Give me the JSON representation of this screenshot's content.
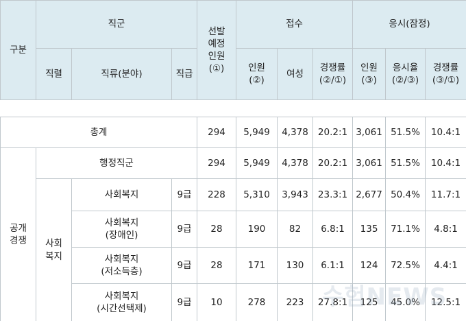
{
  "header": {
    "group": "구분",
    "jikgun": "직군",
    "jikryeol": "직렬",
    "jikryu": "직류(분야)",
    "jikgeup": "직급",
    "planned": "선발\n예정\n인원\n(①)",
    "applied": "접수",
    "exam": "응시(잠정)",
    "app_count": "인원\n(②)",
    "women": "여성",
    "app_ratio": "경쟁률\n(②/①)",
    "exam_count": "인원\n(③)",
    "exam_rate": "응시율\n(②/③)",
    "exam_ratio": "경쟁률\n(③/①)"
  },
  "total": {
    "label": "총계",
    "values": [
      "294",
      "5,949",
      "4,378",
      "20.2:1",
      "3,061",
      "51.5%",
      "10.4:1"
    ]
  },
  "open": {
    "label": "공개\n경쟁",
    "admin": {
      "label": "행정직군",
      "values": [
        "294",
        "5,949",
        "4,378",
        "20.2:1",
        "3,061",
        "51.5%",
        "10.4:1"
      ]
    },
    "welfare": {
      "label": "사회\n복지",
      "rows": [
        {
          "field": "사회복지",
          "grade": "9급",
          "values": [
            "228",
            "5,310",
            "3,943",
            "23.3:1",
            "2,677",
            "50.4%",
            "11.7:1"
          ]
        },
        {
          "field": "사회복지\n(장애인)",
          "grade": "9급",
          "values": [
            "28",
            "190",
            "82",
            "6.8:1",
            "135",
            "71.1%",
            "4.8:1"
          ]
        },
        {
          "field": "사회복지\n(저소득층)",
          "grade": "9급",
          "values": [
            "28",
            "171",
            "130",
            "6.1:1",
            "124",
            "72.5%",
            "4.4:1"
          ]
        },
        {
          "field": "사회복지\n(시간선택제)",
          "grade": "9급",
          "values": [
            "10",
            "278",
            "223",
            "27.8:1",
            "125",
            "45.0%",
            "12.5:1"
          ]
        }
      ]
    }
  },
  "watermark": "수험NEWS"
}
